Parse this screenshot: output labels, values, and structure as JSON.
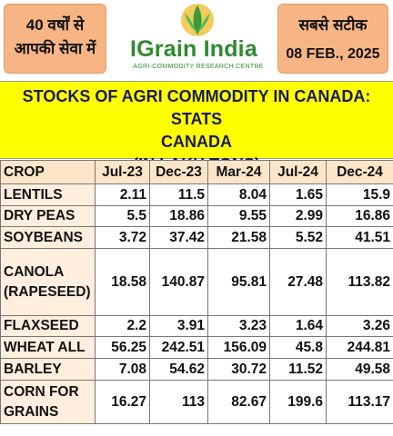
{
  "header": {
    "left_badge": [
      "40 वर्षों से",
      "आपकी सेवा में"
    ],
    "logo": {
      "title": "IGrain India",
      "subtitle": "AGRI-COMMODITY RESEARCH CENTRE"
    },
    "right_badge": {
      "line1": "सबसे सटीक",
      "date": "08 FEB., 2025"
    }
  },
  "banner": {
    "line1": "STOCKS OF AGRI COMMODITY IN CANADA: STATS",
    "line2": "CANADA",
    "line3": "(IN LAKH TONS)"
  },
  "table": {
    "columns": [
      "CROP",
      "Jul-23",
      "Dec-23",
      "Mar-24",
      "Jul-24",
      "Dec-24"
    ],
    "rows": [
      {
        "crop": "LENTILS",
        "values": [
          "2.11",
          "11.5",
          "8.04",
          "1.65",
          "15.9"
        ]
      },
      {
        "crop": "DRY PEAS",
        "values": [
          "5.5",
          "18.86",
          "9.55",
          "2.99",
          "16.86"
        ]
      },
      {
        "crop": "SOYBEANS",
        "values": [
          "3.72",
          "37.42",
          "21.58",
          "5.52",
          "41.51"
        ]
      },
      {
        "crop": "CANOLA (RAPESEED)",
        "values": [
          "18.58",
          "140.87",
          "95.81",
          "27.48",
          "113.82"
        ]
      },
      {
        "crop": "FLAXSEED",
        "values": [
          "2.2",
          "3.91",
          "3.23",
          "1.64",
          "3.26"
        ]
      },
      {
        "crop": "WHEAT ALL",
        "values": [
          "56.25",
          "242.51",
          "156.09",
          "45.8",
          "244.81"
        ]
      },
      {
        "crop": "BARLEY",
        "values": [
          "7.08",
          "54.62",
          "30.72",
          "11.52",
          "49.58"
        ]
      },
      {
        "crop": "CORN FOR GRAINS",
        "values": [
          "16.27",
          "113",
          "82.67",
          "199.6",
          "113.17"
        ]
      }
    ]
  },
  "colors": {
    "header_badge": "#f7b585",
    "banner": "#ffff00",
    "logo_green": "#2e8b2e",
    "crop_column": "#fdeedd"
  }
}
